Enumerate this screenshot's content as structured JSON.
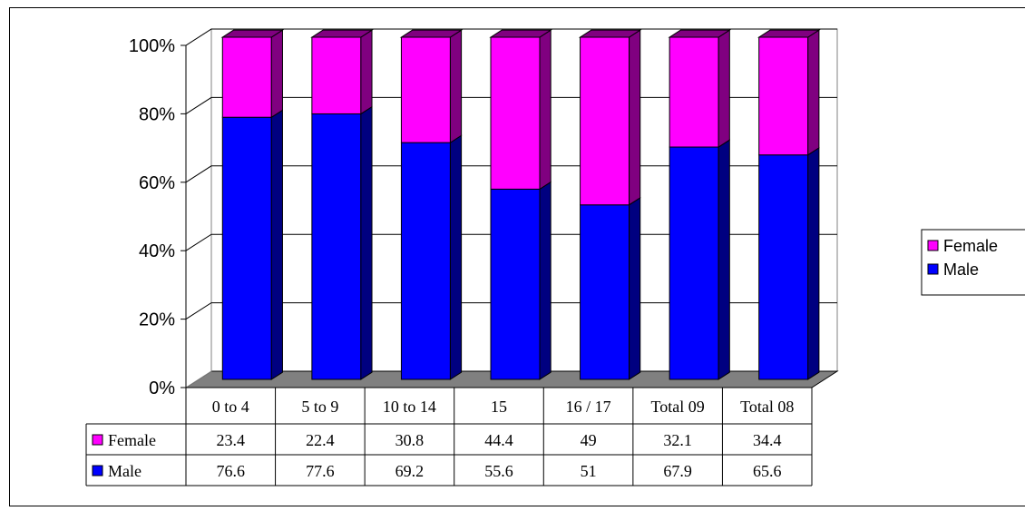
{
  "chart_data": {
    "type": "bar",
    "stacked": "100%",
    "three_d": true,
    "categories": [
      "0 to 4",
      "5 to 9",
      "10 to 14",
      "15",
      "16 / 17",
      "Total 09",
      "Total 08"
    ],
    "series": [
      {
        "name": "Male",
        "values": [
          76.6,
          77.6,
          69.2,
          55.6,
          51,
          67.9,
          65.6
        ],
        "color": "#0000ff",
        "side_color": "#000080"
      },
      {
        "name": "Female",
        "values": [
          23.4,
          22.4,
          30.8,
          44.4,
          49,
          32.1,
          34.4
        ],
        "color": "#ff00ff",
        "side_color": "#800080"
      }
    ],
    "y_ticks": [
      "0%",
      "20%",
      "40%",
      "60%",
      "80%",
      "100%"
    ],
    "ylim": [
      0,
      100
    ],
    "legend": {
      "placement": "right",
      "entries": [
        "Female",
        "Male"
      ]
    },
    "data_table": {
      "rows": [
        {
          "label": "Female",
          "values": [
            "23.4",
            "22.4",
            "30.8",
            "44.4",
            "49",
            "32.1",
            "34.4"
          ]
        },
        {
          "label": "Male",
          "values": [
            "76.6",
            "77.6",
            "69.2",
            "55.6",
            "51",
            "67.9",
            "65.6"
          ]
        }
      ]
    },
    "grid": true,
    "floor_color": "#808080"
  }
}
